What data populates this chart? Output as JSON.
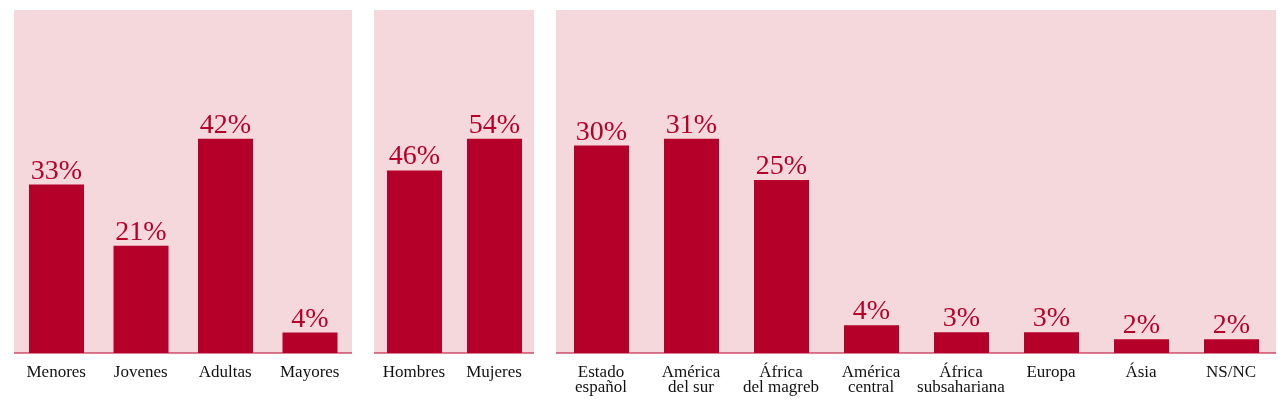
{
  "chart_data": [
    {
      "type": "bar",
      "categories": [
        "Menores",
        "Jovenes",
        "Adultas",
        "Mayores"
      ],
      "values": [
        33,
        21,
        42,
        4
      ],
      "value_labels": [
        "33%",
        "21%",
        "42%",
        "4%"
      ],
      "color": "#b5002a"
    },
    {
      "type": "bar",
      "categories": [
        "Hombres",
        "Mujeres"
      ],
      "values": [
        46,
        54
      ],
      "value_labels": [
        "46%",
        "54%"
      ],
      "color": "#b5002a"
    },
    {
      "type": "bar",
      "categories": [
        "Estado español",
        "América del sur",
        "África del magreb",
        "América central",
        "África subsahariana",
        "Europa",
        "Ásia",
        "NS/NC"
      ],
      "values": [
        30,
        31,
        25,
        4,
        3,
        3,
        2,
        2
      ],
      "value_labels": [
        "30%",
        "31%",
        "25%",
        "4%",
        "3%",
        "3%",
        "2%",
        "2%"
      ],
      "color": "#b5002a"
    }
  ]
}
